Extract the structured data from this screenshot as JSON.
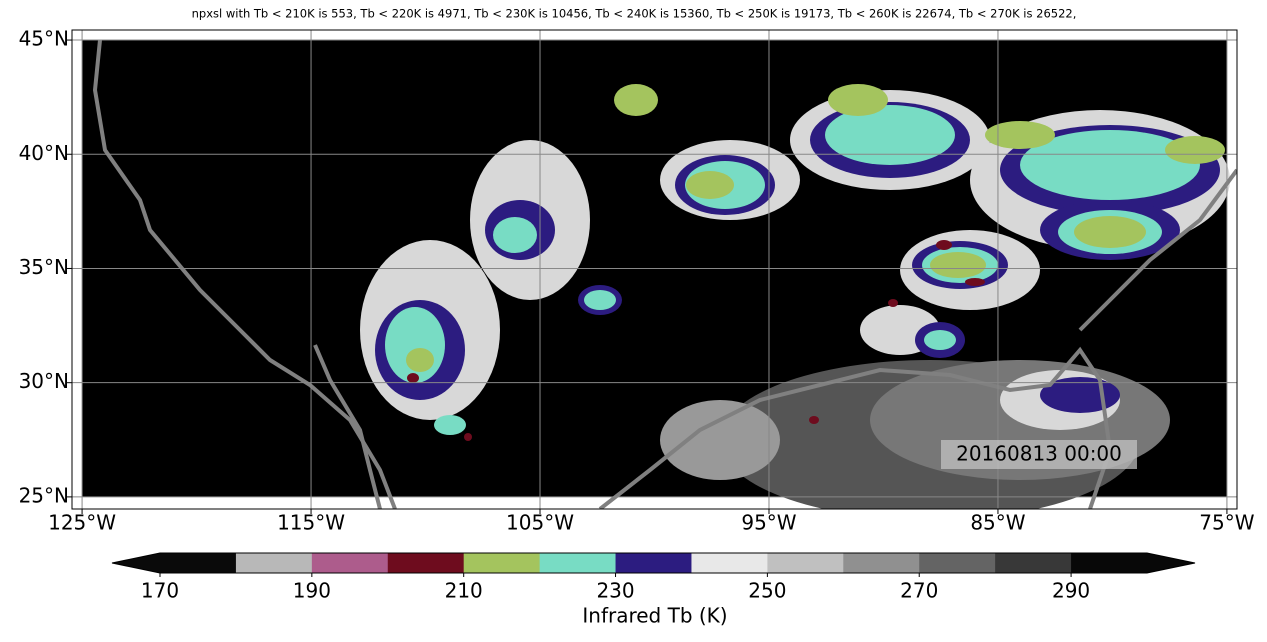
{
  "title": "npxsl with Tb < 210K is 553,  Tb < 220K is 4971,  Tb < 230K is 10456,  Tb < 240K is 15360,  Tb < 250K is 19173,  Tb < 260K is 22674,  Tb < 270K is 26522,",
  "map": {
    "xlim": [
      -125.44,
      -74.56
    ],
    "ylim": [
      24.47,
      45.44
    ],
    "xticks": [
      {
        "value": -125,
        "label": "125°W"
      },
      {
        "value": -115,
        "label": "115°W"
      },
      {
        "value": -105,
        "label": "105°W"
      },
      {
        "value": -95,
        "label": "95°W"
      },
      {
        "value": -85,
        "label": "85°W"
      },
      {
        "value": -75,
        "label": "75°W"
      }
    ],
    "yticks": [
      {
        "value": 25,
        "label": "25°N"
      },
      {
        "value": 30,
        "label": "30°N"
      },
      {
        "value": 35,
        "label": "35°N"
      },
      {
        "value": 40,
        "label": "40°N"
      },
      {
        "value": 45,
        "label": "45°N"
      }
    ],
    "grid": true,
    "timestamp": "20160813 00:00"
  },
  "colorbar": {
    "bounds": [
      170,
      180,
      190,
      200,
      210,
      220,
      230,
      240,
      250,
      260,
      270,
      280,
      290,
      300
    ],
    "colors": [
      "#0a0a0a",
      "#b8b8b8",
      "#ad5c8c",
      "#6e0c1e",
      "#a4c45e",
      "#78dcc4",
      "#2c1c80",
      "#e8e8e8",
      "#c0c0c0",
      "#909090",
      "#646464",
      "#383838",
      "#080808"
    ],
    "ticks": [
      170,
      190,
      210,
      230,
      250,
      270,
      290
    ],
    "extend": "both",
    "label": "Infrared Tb (K)"
  }
}
